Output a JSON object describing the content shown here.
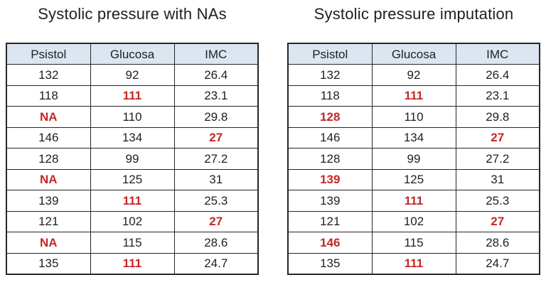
{
  "colors": {
    "background": "#ffffff",
    "text": "#1f1f1f",
    "border": "#262626",
    "header_bg": "#dce6f1",
    "highlight_text": "#c62626"
  },
  "chart_data": [
    {
      "type": "table",
      "title": "Systolic pressure with NAs",
      "columns": [
        "Psistol",
        "Glucosa",
        "IMC"
      ],
      "highlight_meaning": "red bold cells mark missing (NA) or flagged values",
      "rows": [
        [
          {
            "value": "132",
            "highlight": false
          },
          {
            "value": "92",
            "highlight": false
          },
          {
            "value": "26.4",
            "highlight": false
          }
        ],
        [
          {
            "value": "118",
            "highlight": false
          },
          {
            "value": "111",
            "highlight": true
          },
          {
            "value": "23.1",
            "highlight": false
          }
        ],
        [
          {
            "value": "NA",
            "highlight": true
          },
          {
            "value": "110",
            "highlight": false
          },
          {
            "value": "29.8",
            "highlight": false
          }
        ],
        [
          {
            "value": "146",
            "highlight": false
          },
          {
            "value": "134",
            "highlight": false
          },
          {
            "value": "27",
            "highlight": true
          }
        ],
        [
          {
            "value": "128",
            "highlight": false
          },
          {
            "value": "99",
            "highlight": false
          },
          {
            "value": "27.2",
            "highlight": false
          }
        ],
        [
          {
            "value": "NA",
            "highlight": true
          },
          {
            "value": "125",
            "highlight": false
          },
          {
            "value": "31",
            "highlight": false
          }
        ],
        [
          {
            "value": "139",
            "highlight": false
          },
          {
            "value": "111",
            "highlight": true
          },
          {
            "value": "25.3",
            "highlight": false
          }
        ],
        [
          {
            "value": "121",
            "highlight": false
          },
          {
            "value": "102",
            "highlight": false
          },
          {
            "value": "27",
            "highlight": true
          }
        ],
        [
          {
            "value": "NA",
            "highlight": true
          },
          {
            "value": "115",
            "highlight": false
          },
          {
            "value": "28.6",
            "highlight": false
          }
        ],
        [
          {
            "value": "135",
            "highlight": false
          },
          {
            "value": "111",
            "highlight": true
          },
          {
            "value": "24.7",
            "highlight": false
          }
        ]
      ]
    },
    {
      "type": "table",
      "title": "Systolic pressure imputation",
      "columns": [
        "Psistol",
        "Glucosa",
        "IMC"
      ],
      "highlight_meaning": "red bold cells mark imputed or flagged values",
      "rows": [
        [
          {
            "value": "132",
            "highlight": false
          },
          {
            "value": "92",
            "highlight": false
          },
          {
            "value": "26.4",
            "highlight": false
          }
        ],
        [
          {
            "value": "118",
            "highlight": false
          },
          {
            "value": "111",
            "highlight": true
          },
          {
            "value": "23.1",
            "highlight": false
          }
        ],
        [
          {
            "value": "128",
            "highlight": true
          },
          {
            "value": "110",
            "highlight": false
          },
          {
            "value": "29.8",
            "highlight": false
          }
        ],
        [
          {
            "value": "146",
            "highlight": false
          },
          {
            "value": "134",
            "highlight": false
          },
          {
            "value": "27",
            "highlight": true
          }
        ],
        [
          {
            "value": "128",
            "highlight": false
          },
          {
            "value": "99",
            "highlight": false
          },
          {
            "value": "27.2",
            "highlight": false
          }
        ],
        [
          {
            "value": "139",
            "highlight": true
          },
          {
            "value": "125",
            "highlight": false
          },
          {
            "value": "31",
            "highlight": false
          }
        ],
        [
          {
            "value": "139",
            "highlight": false
          },
          {
            "value": "111",
            "highlight": true
          },
          {
            "value": "25.3",
            "highlight": false
          }
        ],
        [
          {
            "value": "121",
            "highlight": false
          },
          {
            "value": "102",
            "highlight": false
          },
          {
            "value": "27",
            "highlight": true
          }
        ],
        [
          {
            "value": "146",
            "highlight": true
          },
          {
            "value": "115",
            "highlight": false
          },
          {
            "value": "28.6",
            "highlight": false
          }
        ],
        [
          {
            "value": "135",
            "highlight": false
          },
          {
            "value": "111",
            "highlight": true
          },
          {
            "value": "24.7",
            "highlight": false
          }
        ]
      ]
    }
  ]
}
